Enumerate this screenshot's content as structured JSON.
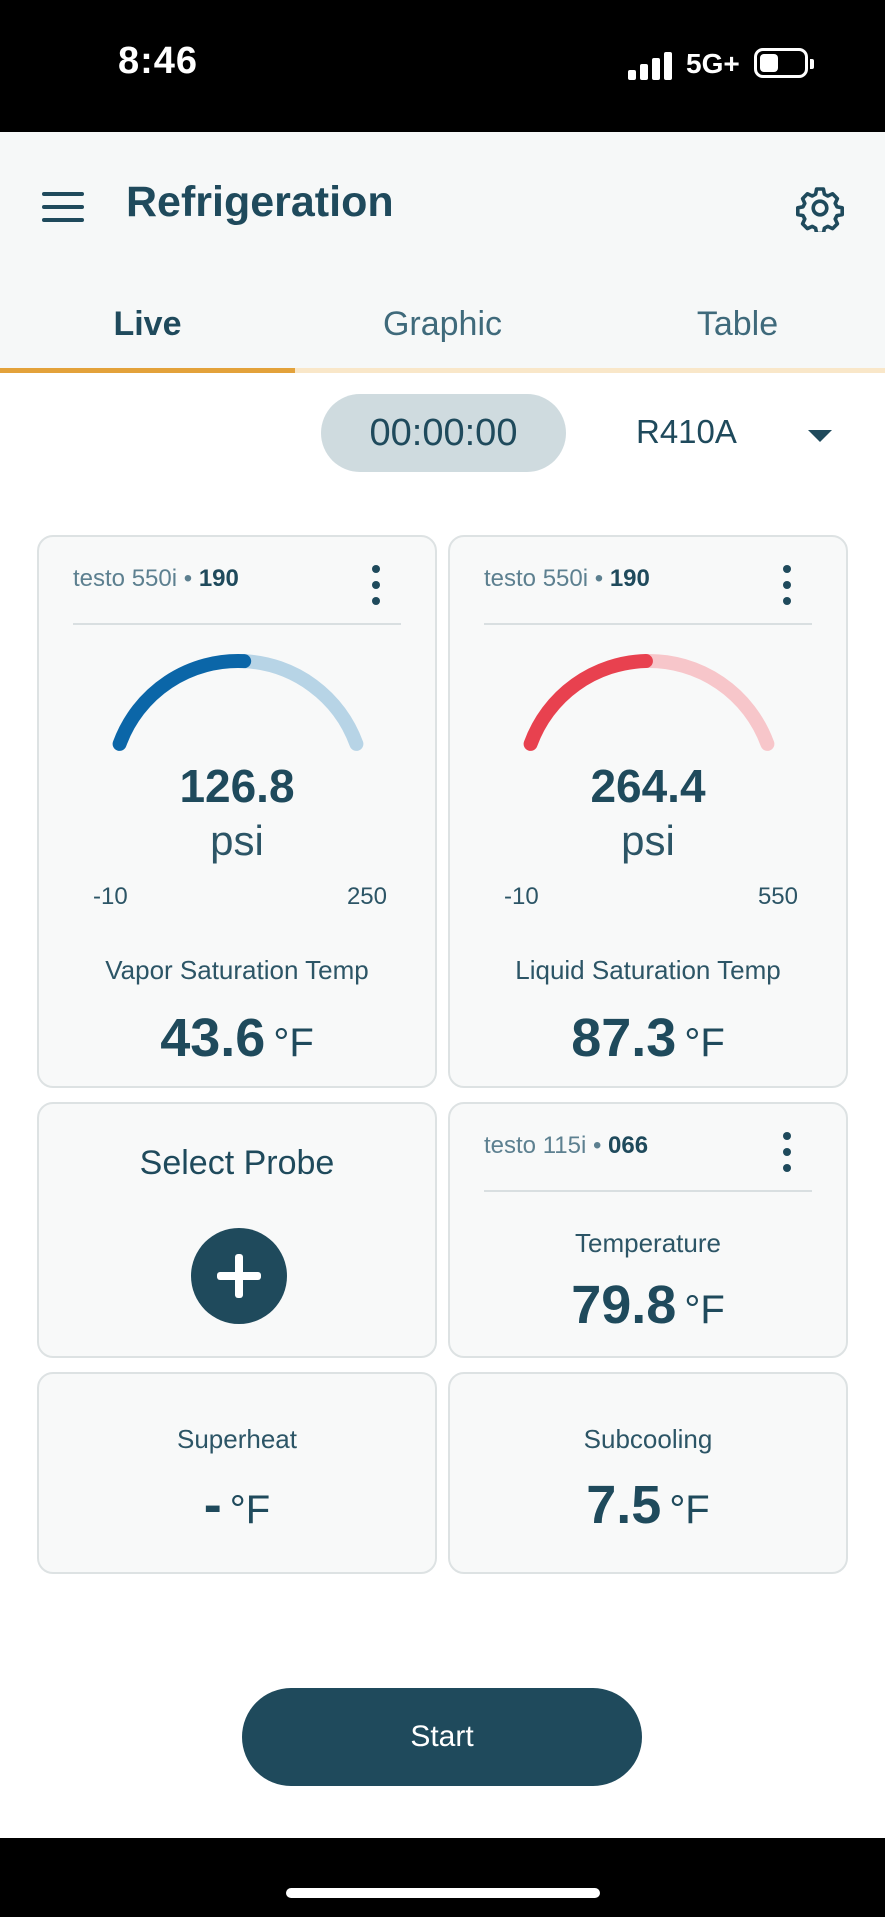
{
  "status_bar": {
    "time": "8:46",
    "network": "5G+"
  },
  "header": {
    "title": "Refrigeration"
  },
  "tabs": [
    {
      "label": "Live",
      "active": true
    },
    {
      "label": "Graphic",
      "active": false
    },
    {
      "label": "Table",
      "active": false
    }
  ],
  "timer": "00:00:00",
  "refrigerant": "R410A",
  "gauges": [
    {
      "device": "testo 550i",
      "separator": "•",
      "serial": "190",
      "value": "126.8",
      "unit": "psi",
      "min": "-10",
      "max": "250",
      "fraction": 0.52,
      "color_active": "#0b66a8",
      "color_track": "#b7d4e6",
      "label": "Vapor Saturation Temp",
      "sat_value": "43.6",
      "sat_unit": "°F"
    },
    {
      "device": "testo 550i",
      "separator": "•",
      "serial": "190",
      "value": "264.4",
      "unit": "psi",
      "min": "-10",
      "max": "550",
      "fraction": 0.49,
      "color_active": "#e8414f",
      "color_track": "#f7c6ca",
      "label": "Liquid Saturation Temp",
      "sat_value": "87.3",
      "sat_unit": "°F"
    }
  ],
  "select_probe": {
    "label": "Select Probe"
  },
  "temperature_card": {
    "device": "testo 115i",
    "separator": "•",
    "serial": "066",
    "label": "Temperature",
    "value": "79.8",
    "unit": "°F"
  },
  "superheat": {
    "label": "Superheat",
    "value": "-",
    "unit": "°F"
  },
  "subcooling": {
    "label": "Subcooling",
    "value": "7.5",
    "unit": "°F"
  },
  "start_button": {
    "label": "Start"
  },
  "colors": {
    "primary": "#1f4a5c",
    "tab_indicator": "#e3a23b"
  }
}
